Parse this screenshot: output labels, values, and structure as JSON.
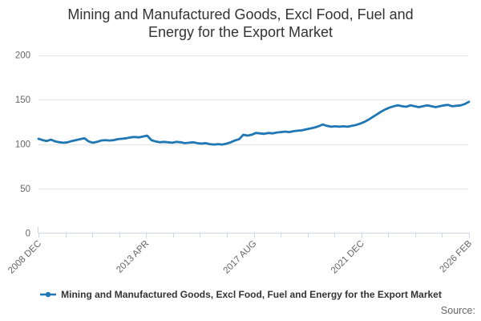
{
  "colors": {
    "series_blue": "#1f77b4",
    "grid": "#e6e6e6",
    "axis": "#ccd6eb",
    "tick_label": "#666666",
    "title": "#333333",
    "source": "#666666"
  },
  "legend": {
    "label": "Mining and Manufactured Goods, Excl Food, Fuel and Energy for the Export Market"
  },
  "source": {
    "label": "Source:"
  },
  "chart_data": {
    "type": "line",
    "title": "Mining and Manufactured Goods, Excl Food, Fuel and Energy for the Export Market",
    "xlabel": "",
    "ylabel": "",
    "ylim": [
      0,
      200
    ],
    "y_ticks": [
      0,
      50,
      100,
      150,
      200
    ],
    "grid": true,
    "legend_position": "bottom",
    "x_tick_count": 17,
    "x_label_every_n_ticks": 4,
    "x_tick_labels": [
      "2008 DEC",
      "2013 APR",
      "2017 AUG",
      "2021 DEC",
      "2026 FEB"
    ],
    "x_start": "2008 DEC",
    "x_end": "2026 FEB",
    "series": [
      {
        "name": "Mining and Manufactured Goods, Excl Food, Fuel and Energy for the Export Market",
        "color": "#1f77b4",
        "values": [
          106,
          104.5,
          103.5,
          105,
          103,
          102,
          101.5,
          102,
          103.5,
          104.5,
          105.5,
          106.5,
          103,
          101.5,
          102.5,
          104,
          104.5,
          104,
          104.5,
          105.5,
          106,
          106.5,
          107.5,
          108,
          107.5,
          108.5,
          109.5,
          104.5,
          103,
          102,
          102.5,
          102,
          101.5,
          102.5,
          102,
          101,
          101.5,
          102,
          101,
          100.5,
          101,
          100,
          99.5,
          100,
          99.5,
          100.5,
          102,
          104,
          105.5,
          110.5,
          109.5,
          110.5,
          112.5,
          112,
          111.5,
          112.5,
          112,
          113,
          113.5,
          114,
          113.5,
          114.5,
          115,
          115.5,
          116.5,
          117.5,
          118.5,
          120,
          122,
          120.5,
          119.5,
          120,
          119.5,
          120,
          119.5,
          120.5,
          121.5,
          123,
          125,
          127.5,
          130.5,
          133.5,
          136.5,
          139,
          141,
          142.5,
          143.5,
          142.5,
          142,
          143.5,
          142.5,
          141.5,
          142.5,
          143.5,
          142.5,
          141.5,
          142.5,
          143.5,
          144,
          142.5,
          143,
          143.5,
          145,
          147.5
        ]
      }
    ]
  }
}
